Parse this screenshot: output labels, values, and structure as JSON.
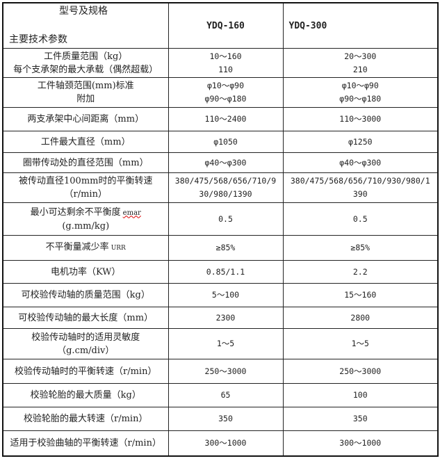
{
  "header": {
    "spec_label": "型号及规格",
    "param_label": "主要技术参数",
    "models": [
      "YDQ-160",
      "YDQ-300"
    ]
  },
  "rows": [
    {
      "param": [
        "工件质量范围（kg）",
        "每个支承架的最大承载（偶然超载）"
      ],
      "a": [
        "10～160",
        "110"
      ],
      "b": [
        "20～300",
        "210"
      ]
    },
    {
      "param": [
        "工件轴颈范围(mm)标准",
        "附加"
      ],
      "a": [
        "φ10～φ90",
        "φ90～φ180"
      ],
      "b": [
        "φ10～φ90",
        "φ90～φ180"
      ]
    },
    {
      "param": [
        "两支承架中心间距离（mm）"
      ],
      "a": [
        "110～2400"
      ],
      "b": [
        "110～3000"
      ]
    },
    {
      "param": [
        "工件最大直径（mm）"
      ],
      "a": [
        "φ1050"
      ],
      "b": [
        "φ1250"
      ]
    },
    {
      "param": [
        "圈带传动处的直径范围（mm）"
      ],
      "a": [
        "φ40～φ300"
      ],
      "b": [
        "φ40～φ300"
      ]
    },
    {
      "param": [
        "被传动直径100mm时的平衡转速",
        "（r/min）"
      ],
      "a": [
        "380/475/568/656/710/9",
        "30/980/1390"
      ],
      "b": [
        "380/475/568/656/710/930/980/1",
        "390"
      ]
    },
    {
      "param": [
        "最小可达剩余不平衡度",
        "(g.mm/kg)"
      ],
      "param_sym": "emar",
      "a": [
        "0.5"
      ],
      "b": [
        "0.5"
      ]
    },
    {
      "param": [
        "不平衡量减少率"
      ],
      "param_sym": "URR",
      "a": [
        "≥85%"
      ],
      "b": [
        "≥85%"
      ]
    },
    {
      "param": [
        "电机功率（KW）"
      ],
      "a": [
        "0.85/1.1"
      ],
      "b": [
        "2.2"
      ]
    },
    {
      "param": [
        "可校验传动轴的质量范围（kg）"
      ],
      "a": [
        "5～100"
      ],
      "b": [
        "15～160"
      ]
    },
    {
      "param": [
        "可校验传动轴的最大长度（mm）"
      ],
      "a": [
        "2300"
      ],
      "b": [
        "2800"
      ]
    },
    {
      "param": [
        "校验传动轴时的适用灵敏度",
        "（g.cm/div）"
      ],
      "a": [
        "1～5"
      ],
      "b": [
        "1～5"
      ]
    },
    {
      "param": [
        "校验传动轴时的平衡转速（r/min）"
      ],
      "a": [
        "250～3000"
      ],
      "b": [
        "250～3000"
      ]
    },
    {
      "param": [
        "校验轮胎的最大质量（kg）"
      ],
      "a": [
        "65"
      ],
      "b": [
        "100"
      ]
    },
    {
      "param": [
        "校验轮胎的最大转速（r/min）"
      ],
      "a": [
        "350"
      ],
      "b": [
        "350"
      ]
    },
    {
      "param": [
        "适用于校验曲轴的平衡转速（r/min）"
      ],
      "a": [
        "300～1000"
      ],
      "b": [
        "300～1000"
      ]
    }
  ]
}
